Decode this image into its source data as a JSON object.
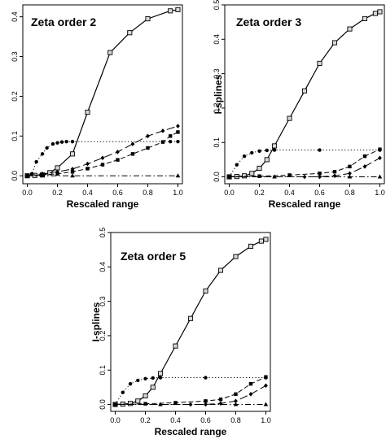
{
  "chart_data": [
    {
      "type": "line",
      "title": "Zeta order 2",
      "xlabel": "Rescaled range",
      "ylabel": "",
      "xlim": [
        -0.03,
        1.03
      ],
      "ylim": [
        -0.02,
        0.43
      ],
      "xticks": [
        "0.0",
        "0.2",
        "0.4",
        "0.6",
        "0.8",
        "1.0"
      ],
      "yticks": [
        "0.0",
        "0.1",
        "0.2",
        "0.3",
        "0.4"
      ],
      "series": [
        {
          "style": "solid",
          "marker": "square-open",
          "x": [
            0.0,
            0.05,
            0.1,
            0.15,
            0.2,
            0.3,
            0.4,
            0.55,
            0.68,
            0.8,
            0.95,
            1.0
          ],
          "y": [
            0.0,
            0.001,
            0.002,
            0.008,
            0.02,
            0.055,
            0.16,
            0.31,
            0.36,
            0.395,
            0.415,
            0.418
          ]
        },
        {
          "style": "dotted",
          "marker": "circle",
          "x": [
            0.0,
            0.03,
            0.06,
            0.1,
            0.13,
            0.17,
            0.2,
            0.23,
            0.26,
            0.3,
            0.95,
            1.0
          ],
          "y": [
            0.0,
            0.005,
            0.035,
            0.055,
            0.07,
            0.08,
            0.083,
            0.085,
            0.086,
            0.086,
            0.086,
            0.086
          ]
        },
        {
          "style": "dashed",
          "marker": "square",
          "x": [
            0.0,
            0.1,
            0.2,
            0.3,
            0.4,
            0.5,
            0.6,
            0.7,
            0.8,
            0.9,
            0.95,
            1.0
          ],
          "y": [
            0.0,
            0.002,
            0.005,
            0.01,
            0.018,
            0.028,
            0.04,
            0.055,
            0.07,
            0.085,
            0.1,
            0.11
          ]
        },
        {
          "style": "longdash",
          "marker": "diamond",
          "x": [
            0.0,
            0.1,
            0.2,
            0.3,
            0.4,
            0.5,
            0.6,
            0.7,
            0.8,
            0.9,
            1.0
          ],
          "y": [
            0.0,
            0.005,
            0.01,
            0.017,
            0.03,
            0.045,
            0.06,
            0.08,
            0.1,
            0.113,
            0.125
          ]
        },
        {
          "style": "dotdash",
          "marker": "triangle",
          "x": [
            0.0,
            0.3,
            1.0
          ],
          "y": [
            0.0,
            0.0,
            0.0
          ]
        }
      ]
    },
    {
      "type": "line",
      "title": "Zeta order 3",
      "xlabel": "Rescaled range",
      "ylabel": "I-splines",
      "xlim": [
        -0.03,
        1.03
      ],
      "ylim": [
        -0.02,
        0.5
      ],
      "xticks": [
        "0.0",
        "0.2",
        "0.4",
        "0.6",
        "0.8",
        "1.0"
      ],
      "yticks": [
        "0.0",
        "0.1",
        "0.2",
        "0.3",
        "0.4",
        "0.5"
      ],
      "series": [
        {
          "style": "solid",
          "marker": "square-open",
          "x": [
            0.0,
            0.05,
            0.1,
            0.15,
            0.2,
            0.25,
            0.3,
            0.4,
            0.5,
            0.6,
            0.7,
            0.8,
            0.9,
            0.97,
            1.0
          ],
          "y": [
            0.0,
            0.001,
            0.003,
            0.01,
            0.025,
            0.05,
            0.09,
            0.17,
            0.25,
            0.33,
            0.39,
            0.43,
            0.46,
            0.475,
            0.48
          ]
        },
        {
          "style": "dotted",
          "marker": "circle",
          "x": [
            0.0,
            0.05,
            0.1,
            0.15,
            0.2,
            0.25,
            0.3,
            0.6,
            1.0
          ],
          "y": [
            0.0,
            0.035,
            0.06,
            0.07,
            0.075,
            0.077,
            0.078,
            0.078,
            0.078
          ]
        },
        {
          "style": "dashed",
          "marker": "square",
          "x": [
            0.0,
            0.2,
            0.4,
            0.6,
            0.7,
            0.8,
            0.9,
            1.0
          ],
          "y": [
            0.0,
            0.002,
            0.005,
            0.01,
            0.015,
            0.03,
            0.06,
            0.08
          ]
        },
        {
          "style": "longdash",
          "marker": "diamond",
          "x": [
            0.0,
            0.5,
            0.6,
            0.7,
            0.8,
            0.9,
            1.0
          ],
          "y": [
            0.0,
            0.0,
            0.0,
            0.003,
            0.01,
            0.03,
            0.055
          ]
        },
        {
          "style": "dotdash",
          "marker": "triangle",
          "x": [
            0.0,
            0.3,
            0.8,
            1.0
          ],
          "y": [
            0.0,
            0.0,
            0.0,
            0.0
          ]
        }
      ]
    },
    {
      "type": "line",
      "title": "Zeta order 5",
      "xlabel": "Rescaled range",
      "ylabel": "I-splines",
      "xlim": [
        -0.03,
        1.03
      ],
      "ylim": [
        -0.02,
        0.5
      ],
      "xticks": [
        "0.0",
        "0.2",
        "0.4",
        "0.6",
        "0.8",
        "1.0"
      ],
      "yticks": [
        "0.0",
        "0.1",
        "0.2",
        "0.3",
        "0.4",
        "0.5"
      ],
      "series": [
        {
          "style": "solid",
          "marker": "square-open",
          "x": [
            0.0,
            0.05,
            0.1,
            0.15,
            0.2,
            0.25,
            0.3,
            0.4,
            0.5,
            0.6,
            0.7,
            0.8,
            0.9,
            0.97,
            1.0
          ],
          "y": [
            0.0,
            0.001,
            0.003,
            0.01,
            0.025,
            0.05,
            0.09,
            0.17,
            0.25,
            0.33,
            0.39,
            0.43,
            0.46,
            0.475,
            0.48
          ]
        },
        {
          "style": "dotted",
          "marker": "circle",
          "x": [
            0.0,
            0.05,
            0.1,
            0.15,
            0.2,
            0.25,
            0.3,
            0.6,
            1.0
          ],
          "y": [
            0.0,
            0.035,
            0.06,
            0.07,
            0.075,
            0.077,
            0.078,
            0.078,
            0.078
          ]
        },
        {
          "style": "dashed",
          "marker": "square",
          "x": [
            0.0,
            0.2,
            0.4,
            0.6,
            0.7,
            0.8,
            0.9,
            1.0
          ],
          "y": [
            0.0,
            0.002,
            0.005,
            0.01,
            0.015,
            0.03,
            0.06,
            0.08
          ]
        },
        {
          "style": "longdash",
          "marker": "diamond",
          "x": [
            0.0,
            0.5,
            0.6,
            0.7,
            0.8,
            0.9,
            1.0
          ],
          "y": [
            0.0,
            0.0,
            0.0,
            0.003,
            0.01,
            0.03,
            0.055
          ]
        },
        {
          "style": "dotdash",
          "marker": "triangle",
          "x": [
            0.0,
            0.3,
            0.8,
            1.0
          ],
          "y": [
            0.0,
            0.0,
            0.0,
            0.0
          ]
        }
      ]
    }
  ]
}
